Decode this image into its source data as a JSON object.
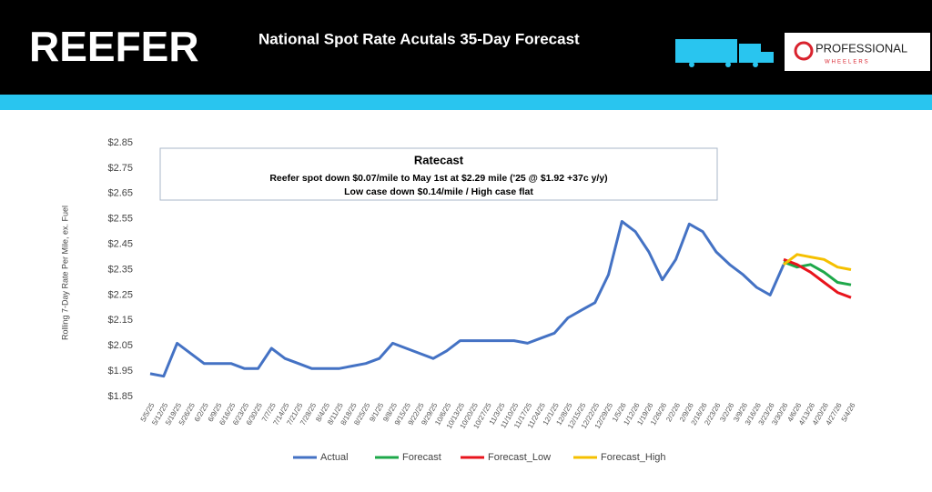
{
  "header": {
    "brand": "REEFER",
    "headline": "National Spot Rate Acutals 35-Day Forecast",
    "logo_name": "PROFESSIONAL",
    "logo_sub": "WHEELERS"
  },
  "chart_data": {
    "type": "line",
    "annotation": {
      "title": "Ratecast",
      "lines": [
        "Reefer spot down $0.07/mile to May 1st at $2.29 mile ('25 @ $1.92 +37c y/y)",
        "Low case down $0.14/mile  / High case flat"
      ]
    },
    "y_label": "Rolling 7-Day Rate Per Mile, ex. Fuel",
    "categories": [
      "5/5/25",
      "5/12/25",
      "5/19/25",
      "5/26/25",
      "6/2/25",
      "6/9/25",
      "6/16/25",
      "6/23/25",
      "6/30/25",
      "7/7/25",
      "7/14/25",
      "7/21/25",
      "7/28/25",
      "8/4/25",
      "8/11/25",
      "8/18/25",
      "8/25/25",
      "9/1/25",
      "9/8/25",
      "9/15/25",
      "9/22/25",
      "9/29/25",
      "10/6/25",
      "10/13/25",
      "10/20/25",
      "10/27/25",
      "11/3/25",
      "11/10/25",
      "11/17/25",
      "11/24/25",
      "12/1/25",
      "12/8/25",
      "12/15/25",
      "12/22/25",
      "12/29/25",
      "1/5/26",
      "1/12/26",
      "1/19/26",
      "1/26/26",
      "2/2/26",
      "2/9/26",
      "2/16/26",
      "2/23/26",
      "3/2/26",
      "3/9/26",
      "3/16/26",
      "3/23/26",
      "3/30/26",
      "4/6/26",
      "4/13/26",
      "4/20/26",
      "4/27/26",
      "5/4/26"
    ],
    "series": [
      {
        "name": "Actual",
        "color": "#4472c4",
        "values": [
          1.94,
          1.93,
          2.06,
          2.02,
          1.98,
          1.98,
          1.98,
          1.96,
          1.96,
          2.04,
          2.0,
          1.98,
          1.96,
          1.96,
          1.96,
          1.97,
          1.98,
          2.0,
          2.06,
          2.04,
          2.02,
          2.0,
          2.03,
          2.07,
          2.07,
          2.07,
          2.07,
          2.07,
          2.06,
          2.08,
          2.1,
          2.16,
          2.19,
          2.22,
          2.33,
          2.54,
          2.5,
          2.42,
          2.31,
          2.39,
          2.53,
          2.5,
          2.42,
          2.37,
          2.33,
          2.28,
          2.25,
          2.37,
          null,
          null,
          null,
          null,
          null
        ]
      },
      {
        "name": "Forecast",
        "color": "#1ea84a",
        "values": [
          null,
          null,
          null,
          null,
          null,
          null,
          null,
          null,
          null,
          null,
          null,
          null,
          null,
          null,
          null,
          null,
          null,
          null,
          null,
          null,
          null,
          null,
          null,
          null,
          null,
          null,
          null,
          null,
          null,
          null,
          null,
          null,
          null,
          null,
          null,
          null,
          null,
          null,
          null,
          null,
          null,
          null,
          null,
          null,
          null,
          null,
          null,
          2.38,
          2.36,
          2.37,
          2.34,
          2.3,
          2.29
        ]
      },
      {
        "name": "Forecast_Low",
        "color": "#e8141c",
        "values": [
          null,
          null,
          null,
          null,
          null,
          null,
          null,
          null,
          null,
          null,
          null,
          null,
          null,
          null,
          null,
          null,
          null,
          null,
          null,
          null,
          null,
          null,
          null,
          null,
          null,
          null,
          null,
          null,
          null,
          null,
          null,
          null,
          null,
          null,
          null,
          null,
          null,
          null,
          null,
          null,
          null,
          null,
          null,
          null,
          null,
          null,
          null,
          2.39,
          2.37,
          2.34,
          2.3,
          2.26,
          2.24
        ]
      },
      {
        "name": "Forecast_High",
        "color": "#f5c000",
        "values": [
          null,
          null,
          null,
          null,
          null,
          null,
          null,
          null,
          null,
          null,
          null,
          null,
          null,
          null,
          null,
          null,
          null,
          null,
          null,
          null,
          null,
          null,
          null,
          null,
          null,
          null,
          null,
          null,
          null,
          null,
          null,
          null,
          null,
          null,
          null,
          null,
          null,
          null,
          null,
          null,
          null,
          null,
          null,
          null,
          null,
          null,
          null,
          2.37,
          2.41,
          2.4,
          2.39,
          2.36,
          2.35
        ]
      }
    ],
    "ylim": [
      1.85,
      2.85
    ],
    "yticks": [
      {
        "value": 1.85,
        "label": "$1.85"
      },
      {
        "value": 1.95,
        "label": "$1.95"
      },
      {
        "value": 2.05,
        "label": "$2.05"
      },
      {
        "value": 2.15,
        "label": "$2.15"
      },
      {
        "value": 2.25,
        "label": "$2.25"
      },
      {
        "value": 2.35,
        "label": "$2.35"
      },
      {
        "value": 2.45,
        "label": "$2.45"
      },
      {
        "value": 2.55,
        "label": "$2.55"
      },
      {
        "value": 2.65,
        "label": "$2.65"
      },
      {
        "value": 2.75,
        "label": "$2.75"
      },
      {
        "value": 2.85,
        "label": "$2.85"
      }
    ],
    "grid": false,
    "legend": "bottom"
  }
}
